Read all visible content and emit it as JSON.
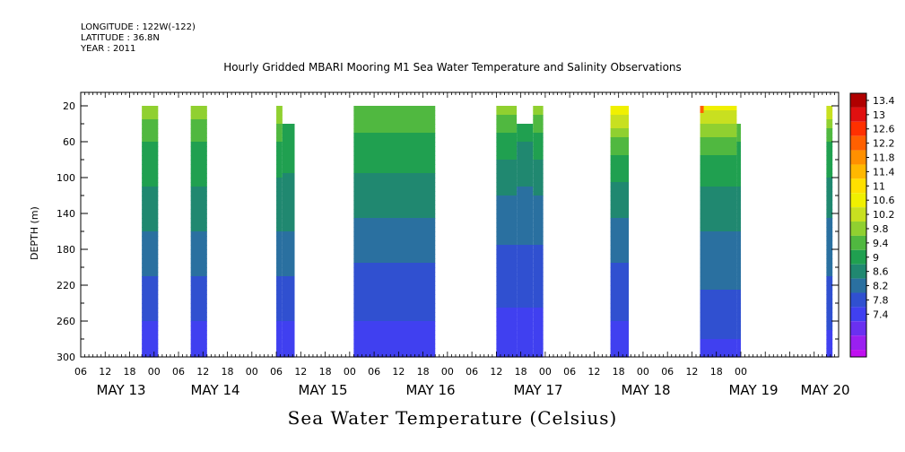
{
  "header": {
    "longitude": "LONGITUDE : 122W(-122)",
    "latitude": "LATITUDE : 36.8N",
    "year": "YEAR : 2011"
  },
  "chart_data": {
    "type": "heatmap",
    "title": "Hourly Gridded MBARI Mooring M1 Sea Water Temperature and Salinity Observations",
    "bottom_title": "Sea Water Temperature (Celsius)",
    "ylabel": "DEPTH (m)",
    "y_ticks": [
      "20",
      "60",
      "100",
      "140",
      "180",
      "220",
      "260",
      "300"
    ],
    "y_tick_values": [
      20,
      60,
      100,
      140,
      180,
      220,
      260,
      300
    ],
    "ylim": [
      300,
      5
    ],
    "x_hour_ticks": [
      "06",
      "12",
      "18",
      "00",
      "06",
      "12",
      "18",
      "00",
      "06",
      "12",
      "18",
      "00",
      "06",
      "12",
      "18",
      "00",
      "06",
      "12",
      "18",
      "00",
      "06",
      "12",
      "18",
      "00",
      "06",
      "12",
      "18",
      "00"
    ],
    "x_day_labels": [
      "MAY 13",
      "MAY 14",
      "MAY 15",
      "MAY 16",
      "MAY 17",
      "MAY 18",
      "MAY 19",
      "MAY 20"
    ],
    "colorbar_levels": [
      "13.4",
      "13",
      "12.6",
      "12.2",
      "11.8",
      "11.4",
      "11",
      "10.6",
      "10.2",
      "9.8",
      "9.4",
      "9",
      "8.6",
      "8.2",
      "7.8",
      "7.4"
    ],
    "colorbar_colors": [
      "#b00000",
      "#e01010",
      "#ff3000",
      "#ff6000",
      "#ff9000",
      "#ffb800",
      "#ffe000",
      "#f0f000",
      "#c8e020",
      "#90d030",
      "#50b840",
      "#20a050",
      "#208870",
      "#2a70a0",
      "#3050d0",
      "#4040f0",
      "#6a30f0",
      "#9a20f0",
      "#c010f0"
    ],
    "data_blocks": [
      {
        "start_hour": 15,
        "end_hour": 19,
        "top_depth": 20,
        "profile": [
          10.0,
          9.4,
          9.0,
          8.6,
          8.2,
          7.8,
          7.4
        ]
      },
      {
        "start_hour": 27,
        "end_hour": 31,
        "top_depth": 20,
        "profile": [
          10.0,
          9.4,
          9.0,
          8.6,
          8.2,
          7.8,
          7.4
        ]
      },
      {
        "start_hour": 48,
        "end_hour": 49.5,
        "top_depth": 20,
        "profile": [
          10.2,
          9.4,
          8.9,
          8.6,
          8.2,
          7.8,
          7.5
        ]
      },
      {
        "start_hour": 49.5,
        "end_hour": 52.5,
        "top_depth": 40,
        "profile": [
          9.4,
          9.2,
          8.9,
          8.6,
          8.2,
          7.8,
          7.5
        ]
      },
      {
        "start_hour": 67,
        "end_hour": 87,
        "top_depth": 20,
        "profile": [
          9.8,
          9.3,
          8.9,
          8.5,
          8.1,
          7.8,
          7.5
        ]
      },
      {
        "start_hour": 102,
        "end_hour": 107,
        "top_depth": 20,
        "profile": [
          10.0,
          9.2,
          8.7,
          8.3,
          8.0,
          7.7,
          7.4
        ]
      },
      {
        "start_hour": 107,
        "end_hour": 111,
        "top_depth": 40,
        "profile": [
          9.4,
          9.0,
          8.6,
          8.3,
          8.0,
          7.7,
          7.4
        ]
      },
      {
        "start_hour": 111,
        "end_hour": 113.5,
        "top_depth": 20,
        "profile": [
          10.0,
          9.2,
          8.7,
          8.3,
          8.0,
          7.7,
          7.4
        ]
      },
      {
        "start_hour": 130,
        "end_hour": 134.5,
        "top_depth": 20,
        "profile": [
          11.0,
          9.6,
          8.9,
          8.5,
          8.1,
          7.8,
          7.4
        ]
      },
      {
        "start_hour": 152,
        "end_hour": 161,
        "top_depth": 20,
        "profile": [
          10.8,
          9.6,
          9.0,
          8.6,
          8.3,
          8.0,
          7.6
        ]
      },
      {
        "start_hour": 161,
        "end_hour": 162,
        "top_depth": 40,
        "profile": [
          10.0,
          9.4,
          9.0,
          8.6,
          8.3,
          8.0,
          7.6
        ]
      },
      {
        "start_hour": 183,
        "end_hour": 184.5,
        "top_depth": 20,
        "profile": [
          10.6,
          9.4,
          8.9,
          8.5,
          8.2,
          7.9,
          7.5
        ]
      }
    ],
    "hot_spots": [
      {
        "hour": 152,
        "depth": 20,
        "value": 12.6
      }
    ],
    "grid": false,
    "legend_placement": "right"
  }
}
